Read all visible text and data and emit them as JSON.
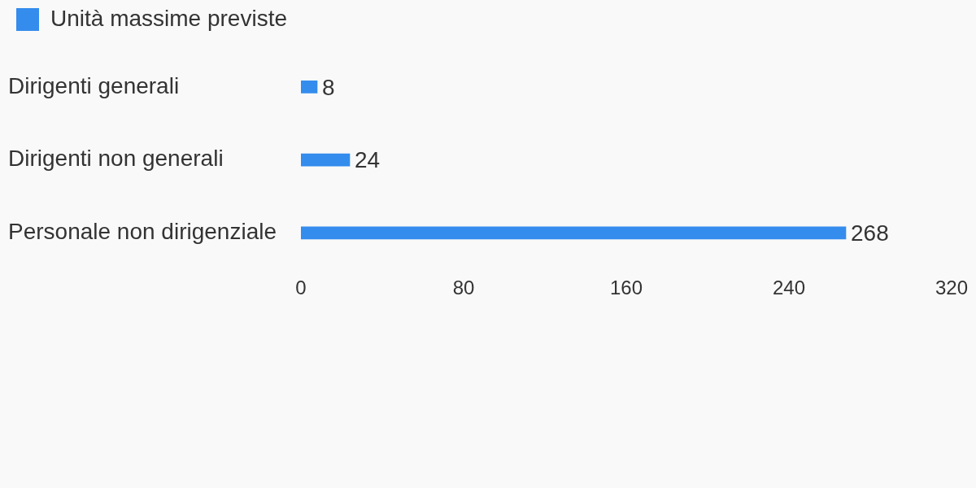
{
  "chart_data": {
    "type": "bar",
    "orientation": "horizontal",
    "categories": [
      "Dirigenti generali",
      "Dirigenti non generali",
      "Personale non dirigenziale"
    ],
    "series": [
      {
        "name": "Unità massime previste",
        "color": "#348ced",
        "values": [
          8,
          24,
          268
        ]
      }
    ],
    "xlim": [
      0,
      320
    ],
    "xticks": [
      0,
      80,
      160,
      240,
      320
    ],
    "data_labels": true,
    "grid": false,
    "legend": "top left"
  }
}
